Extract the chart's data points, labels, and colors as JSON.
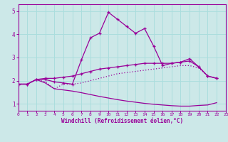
{
  "xlabel": "Windchill (Refroidissement éolien,°C)",
  "xlim": [
    0,
    23
  ],
  "ylim": [
    0.7,
    5.3
  ],
  "bg_color": "#cce8e8",
  "line_color": "#990099",
  "grid_color": "#aadddd",
  "xticks": [
    0,
    1,
    2,
    3,
    4,
    5,
    6,
    7,
    8,
    9,
    10,
    11,
    12,
    13,
    14,
    15,
    16,
    17,
    18,
    19,
    20,
    21,
    22,
    23
  ],
  "yticks": [
    1,
    2,
    3,
    4,
    5
  ],
  "series1_x": [
    0,
    1,
    2,
    3,
    4,
    5,
    6,
    7,
    8,
    9,
    10,
    11,
    12,
    13,
    14,
    15,
    16,
    17,
    18,
    19,
    20,
    21,
    22
  ],
  "series1_y": [
    1.85,
    1.85,
    2.05,
    2.05,
    1.95,
    1.9,
    1.85,
    2.9,
    3.85,
    4.05,
    4.95,
    4.65,
    4.35,
    4.05,
    4.25,
    3.5,
    2.65,
    2.75,
    2.8,
    2.95,
    2.6,
    2.2,
    2.1
  ],
  "series2_x": [
    0,
    1,
    2,
    3,
    4,
    5,
    6,
    7,
    8,
    9,
    10,
    11,
    12,
    13,
    14,
    15,
    16,
    17,
    18,
    19,
    20,
    21,
    22
  ],
  "series2_y": [
    1.85,
    1.85,
    2.05,
    2.1,
    2.1,
    2.15,
    2.2,
    2.3,
    2.4,
    2.5,
    2.55,
    2.6,
    2.65,
    2.7,
    2.75,
    2.75,
    2.75,
    2.75,
    2.8,
    2.85,
    2.6,
    2.2,
    2.1
  ],
  "series3_x": [
    0,
    1,
    2,
    3,
    4,
    5,
    6,
    7,
    8,
    9,
    10,
    11,
    12,
    13,
    14,
    15,
    16,
    17,
    18,
    19,
    20,
    21,
    22
  ],
  "series3_y": [
    1.85,
    1.85,
    2.05,
    1.95,
    1.65,
    1.85,
    1.85,
    1.9,
    2.0,
    2.1,
    2.2,
    2.3,
    2.35,
    2.4,
    2.45,
    2.5,
    2.55,
    2.6,
    2.65,
    2.65,
    2.55,
    2.2,
    2.1
  ],
  "series4_x": [
    0,
    1,
    2,
    3,
    4,
    5,
    6,
    7,
    8,
    9,
    10,
    11,
    12,
    13,
    14,
    15,
    16,
    17,
    18,
    19,
    20,
    21,
    22
  ],
  "series4_y": [
    1.85,
    1.85,
    2.05,
    1.9,
    1.65,
    1.6,
    1.55,
    1.48,
    1.4,
    1.32,
    1.25,
    1.18,
    1.12,
    1.07,
    1.02,
    0.98,
    0.95,
    0.92,
    0.9,
    0.9,
    0.93,
    0.95,
    1.05
  ],
  "endpoint_x": 22,
  "endpoint_y": 1.05
}
